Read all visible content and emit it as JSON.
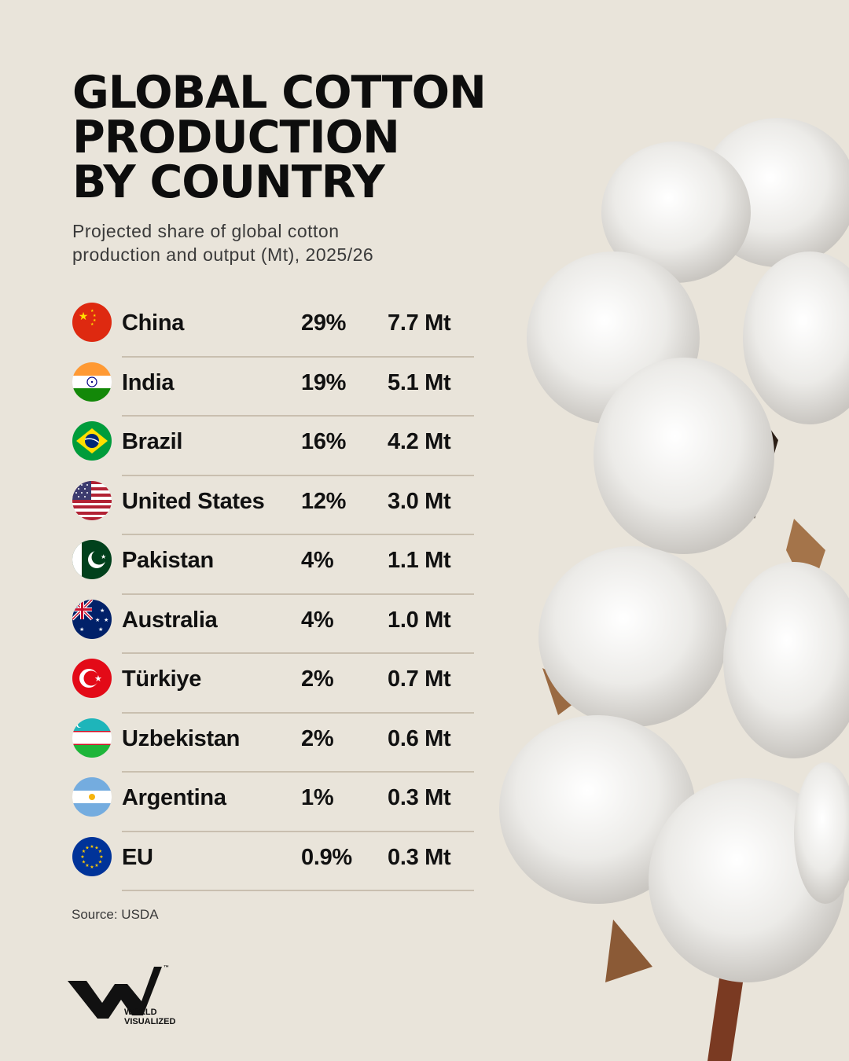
{
  "title_lines": [
    "GLOBAL COTTON",
    "PRODUCTION",
    "BY COUNTRY"
  ],
  "subtitle_lines": [
    "Projected share of global cotton",
    "production and output (Mt), 2025/26"
  ],
  "source": "Source: USDA",
  "logo": {
    "text_line1": "WORLD",
    "text_line2": "VISUALIZED",
    "tm": "™"
  },
  "colors": {
    "background": "#e9e4da",
    "text": "#111111",
    "rule": "#c9bfaf"
  },
  "chart_data": {
    "type": "table",
    "title": "GLOBAL COTTON PRODUCTION BY COUNTRY",
    "subtitle": "Projected share of global cotton production and output (Mt), 2025/26",
    "rows": [
      {
        "country": "China",
        "flag_icon": "china-flag-icon",
        "share_label": "29%",
        "share": 29,
        "output_label": "7.7 Mt",
        "output": 7.7
      },
      {
        "country": "India",
        "flag_icon": "india-flag-icon",
        "share_label": "19%",
        "share": 19,
        "output_label": "5.1 Mt",
        "output": 5.1
      },
      {
        "country": "Brazil",
        "flag_icon": "brazil-flag-icon",
        "share_label": "16%",
        "share": 16,
        "output_label": "4.2 Mt",
        "output": 4.2
      },
      {
        "country": "United States",
        "flag_icon": "usa-flag-icon",
        "share_label": "12%",
        "share": 12,
        "output_label": "3.0 Mt",
        "output": 3.0
      },
      {
        "country": "Pakistan",
        "flag_icon": "pakistan-flag-icon",
        "share_label": "4%",
        "share": 4,
        "output_label": "1.1 Mt",
        "output": 1.1
      },
      {
        "country": "Australia",
        "flag_icon": "australia-flag-icon",
        "share_label": "4%",
        "share": 4,
        "output_label": "1.0 Mt",
        "output": 1.0
      },
      {
        "country": "Türkiye",
        "flag_icon": "turkiye-flag-icon",
        "share_label": "2%",
        "share": 2,
        "output_label": "0.7 Mt",
        "output": 0.7
      },
      {
        "country": "Uzbekistan",
        "flag_icon": "uzbekistan-flag-icon",
        "share_label": "2%",
        "share": 2,
        "output_label": "0.6 Mt",
        "output": 0.6
      },
      {
        "country": "Argentina",
        "flag_icon": "argentina-flag-icon",
        "share_label": "1%",
        "share": 1,
        "output_label": "0.3 Mt",
        "output": 0.3
      },
      {
        "country": "EU",
        "flag_icon": "eu-flag-icon",
        "share_label": "0.9%",
        "share": 0.9,
        "output_label": "0.3 Mt",
        "output": 0.3
      }
    ]
  }
}
